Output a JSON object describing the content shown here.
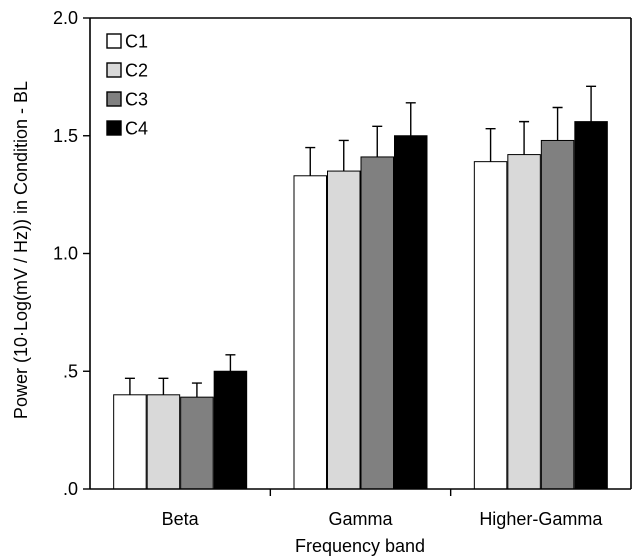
{
  "chart_data": {
    "type": "bar",
    "categories": [
      "Beta",
      "Gamma",
      "Higher-Gamma"
    ],
    "series": [
      {
        "name": "C1",
        "color": "#ffffff",
        "values": [
          0.4,
          1.33,
          1.39
        ],
        "errors": [
          0.07,
          0.12,
          0.14
        ]
      },
      {
        "name": "C2",
        "color": "#d9d9d9",
        "values": [
          0.4,
          1.35,
          1.42
        ],
        "errors": [
          0.07,
          0.13,
          0.14
        ]
      },
      {
        "name": "C3",
        "color": "#808080",
        "values": [
          0.39,
          1.41,
          1.48
        ],
        "errors": [
          0.06,
          0.13,
          0.14
        ]
      },
      {
        "name": "C4",
        "color": "#000000",
        "values": [
          0.5,
          1.5,
          1.56
        ],
        "errors": [
          0.07,
          0.14,
          0.15
        ]
      }
    ],
    "xlabel": "Frequency band",
    "ylabel": "Power (10·Log(mV / Hz)) in Condition - BL",
    "ylim": [
      0,
      2.0
    ],
    "yticks": [
      0,
      0.5,
      1.0,
      1.5,
      2.0
    ],
    "ytick_labels": [
      ".0",
      ".5",
      "1.0",
      "1.5",
      "2.0"
    ],
    "grid": false,
    "legend_position": "top-left"
  }
}
